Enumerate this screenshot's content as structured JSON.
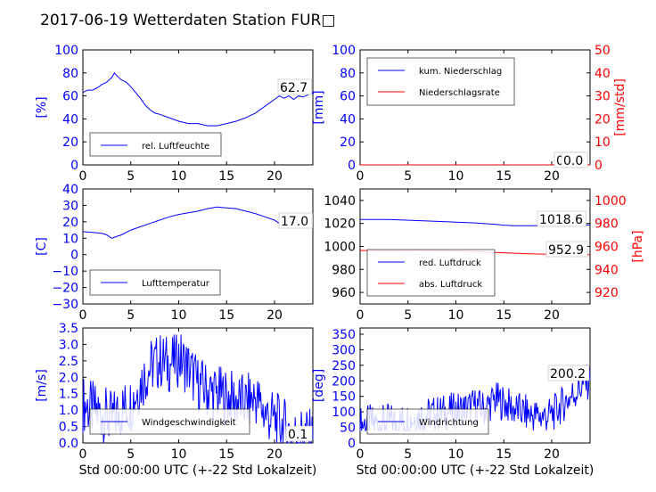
{
  "figure_title": "2017-06-19 Wetterdaten Station FUR□",
  "colors": {
    "left_axis": "#0000ff",
    "right_axis": "#ff0000",
    "line_blue": "#0000ff",
    "line_red": "#ff0000"
  },
  "chart_data": [
    {
      "type": "line",
      "panel": "humidity",
      "ylabel": "[%]",
      "xlim": [
        0,
        24
      ],
      "ylim": [
        0,
        100
      ],
      "xticks": [
        "0",
        "5",
        "10",
        "15",
        "20"
      ],
      "yticks": [
        "0",
        "20",
        "40",
        "60",
        "80",
        "100"
      ],
      "legend": "bottom-left",
      "last_value_label": "62.7",
      "series": [
        {
          "name": "rel. Luftfeuchte",
          "color": "#0000ff",
          "x": [
            0,
            0.5,
            1,
            1.5,
            2,
            2.5,
            3,
            3.3,
            3.6,
            4,
            4.5,
            5,
            5.5,
            6,
            6.5,
            7,
            7.5,
            8,
            9,
            10,
            11,
            12,
            13,
            14,
            15,
            16,
            17,
            18,
            19,
            20,
            20.5,
            21,
            21.5,
            22,
            22.5,
            23,
            23.5,
            24
          ],
          "y": [
            63,
            65,
            65,
            67,
            70,
            72,
            76,
            80,
            77,
            74,
            72,
            68,
            63,
            58,
            52,
            48,
            45,
            44,
            41,
            38,
            36,
            36,
            34,
            34,
            36,
            38,
            41,
            45,
            51,
            57,
            60,
            58,
            60,
            57,
            60,
            59,
            61,
            62.7
          ]
        }
      ]
    },
    {
      "type": "line",
      "panel": "precipitation",
      "ylabel": "[mm]",
      "ylabel_right": "[mm/std]",
      "xlim": [
        0,
        24
      ],
      "ylim": [
        0,
        100
      ],
      "ylim_right": [
        0,
        50
      ],
      "xticks": [
        "0",
        "5",
        "10",
        "15",
        "20"
      ],
      "yticks": [
        "0",
        "20",
        "40",
        "60",
        "80",
        "100"
      ],
      "yticks_right": [
        "0",
        "10",
        "20",
        "30",
        "40",
        "50"
      ],
      "legend": "top-left",
      "last_value_label_1": "0.0",
      "last_value_label_2": "0.0",
      "series": [
        {
          "name": "kum. Niederschlag",
          "color": "#0000ff",
          "x": [
            0,
            24
          ],
          "y": [
            0,
            0
          ]
        },
        {
          "name": "Niederschlagsrate",
          "color": "#ff0000",
          "x": [
            0,
            24
          ],
          "y": [
            0,
            0
          ]
        }
      ]
    },
    {
      "type": "line",
      "panel": "temperature",
      "ylabel": "[C]",
      "xlim": [
        0,
        24
      ],
      "ylim": [
        -30,
        40
      ],
      "xticks": [
        "0",
        "5",
        "10",
        "15",
        "20"
      ],
      "yticks": [
        "−30",
        "−20",
        "−10",
        "0",
        "10",
        "20",
        "30",
        "40"
      ],
      "legend": "bottom-left",
      "last_value_label": "17.0",
      "series": [
        {
          "name": "Lufttemperatur",
          "color": "#0000ff",
          "x": [
            0,
            1,
            2,
            2.5,
            3,
            3.5,
            4,
            5,
            6,
            7,
            8,
            9,
            10,
            11,
            12,
            13,
            14,
            15,
            16,
            17,
            18,
            19,
            20,
            20.5,
            21,
            22,
            23,
            24
          ],
          "y": [
            14,
            13.5,
            13,
            12,
            10,
            11,
            12,
            15,
            17,
            19,
            21,
            23,
            24.5,
            25.5,
            26.5,
            28,
            29,
            28.5,
            28,
            26.5,
            25,
            23,
            21,
            19,
            17.5,
            17,
            16.5,
            17
          ]
        }
      ]
    },
    {
      "type": "line",
      "panel": "pressure",
      "ylabel_right": "[hPa]",
      "xlim": [
        0,
        24
      ],
      "ylim": [
        950,
        1050
      ],
      "ylim_right": [
        910,
        1010
      ],
      "xticks": [
        "0",
        "5",
        "10",
        "15",
        "20"
      ],
      "yticks": [
        "960",
        "980",
        "1000",
        "1020",
        "1040"
      ],
      "yticks_right": [
        "920",
        "940",
        "960",
        "980",
        "1000"
      ],
      "legend": "bottom-left",
      "last_value_label_1": "1018.6",
      "last_value_label_2": "952.9",
      "series": [
        {
          "name": "red. Luftdruck",
          "color": "#0000ff",
          "x": [
            0,
            3,
            6,
            9,
            12,
            14,
            15,
            16,
            18,
            20,
            22,
            24
          ],
          "y": [
            1023.5,
            1023.5,
            1022.5,
            1021.5,
            1020.5,
            1019.3,
            1018.5,
            1018,
            1018,
            1018.3,
            1018.5,
            1018.6
          ]
        },
        {
          "name": "abs. Luftdruck",
          "color": "#ff0000",
          "x": [
            0,
            3,
            6,
            9,
            12,
            15,
            18,
            21,
            24
          ],
          "y": [
            956.5,
            956.3,
            956.5,
            956.3,
            955.5,
            954.5,
            953.5,
            953,
            952.9
          ]
        }
      ]
    },
    {
      "type": "line",
      "panel": "wind_speed",
      "ylabel": "[m/s]",
      "xlabel": "Std 00:00:00 UTC (+-22 Std Lokalzeit)",
      "xlim": [
        0,
        24
      ],
      "ylim": [
        0,
        3.5
      ],
      "xticks": [
        "0",
        "5",
        "10",
        "15",
        "20"
      ],
      "yticks": [
        "0.0",
        "0.5",
        "1.0",
        "1.5",
        "2.0",
        "2.5",
        "3.0",
        "3.5"
      ],
      "legend": "bottom-center",
      "last_value_label": "0.1",
      "series": [
        {
          "name": "Windgeschwindigkeit",
          "color": "#0000ff",
          "x": [
            0,
            1,
            2,
            3,
            4,
            5,
            6,
            7,
            8,
            9,
            10,
            11,
            12,
            13,
            14,
            15,
            16,
            17,
            18,
            19,
            20,
            21,
            22,
            23,
            24
          ],
          "y": [
            1.2,
            1.0,
            0.9,
            0.7,
            1.0,
            1.2,
            1.8,
            2.3,
            2.5,
            2.4,
            2.6,
            2.3,
            1.8,
            1.6,
            1.5,
            1.4,
            1.3,
            1.2,
            1.4,
            0.9,
            0.7,
            0.5,
            0.2,
            0.3,
            0.1
          ],
          "min": 0.0,
          "max": 3.3
        }
      ]
    },
    {
      "type": "line",
      "panel": "wind_direction",
      "ylabel": "[deg]",
      "xlabel": "Std 00:00:00 UTC (+-22 Std Lokalzeit)",
      "xlim": [
        0,
        24
      ],
      "ylim": [
        0,
        370
      ],
      "xticks": [
        "0",
        "5",
        "10",
        "15",
        "20"
      ],
      "yticks": [
        "0",
        "50",
        "100",
        "150",
        "200",
        "250",
        "300",
        "350"
      ],
      "legend": "bottom-left",
      "last_value_label": "200.2",
      "series": [
        {
          "name": "Windrichtung",
          "color": "#0000ff",
          "x": [
            0,
            1,
            2,
            3,
            4,
            5,
            6,
            7,
            8,
            9,
            10,
            11,
            12,
            13,
            14,
            15,
            16,
            17,
            18,
            19,
            20,
            21,
            22,
            23,
            24
          ],
          "y": [
            60,
            65,
            60,
            70,
            65,
            75,
            85,
            90,
            95,
            100,
            105,
            110,
            120,
            110,
            140,
            130,
            110,
            100,
            90,
            85,
            90,
            120,
            150,
            180,
            200.2
          ],
          "min": 40,
          "max": 340
        }
      ]
    }
  ]
}
